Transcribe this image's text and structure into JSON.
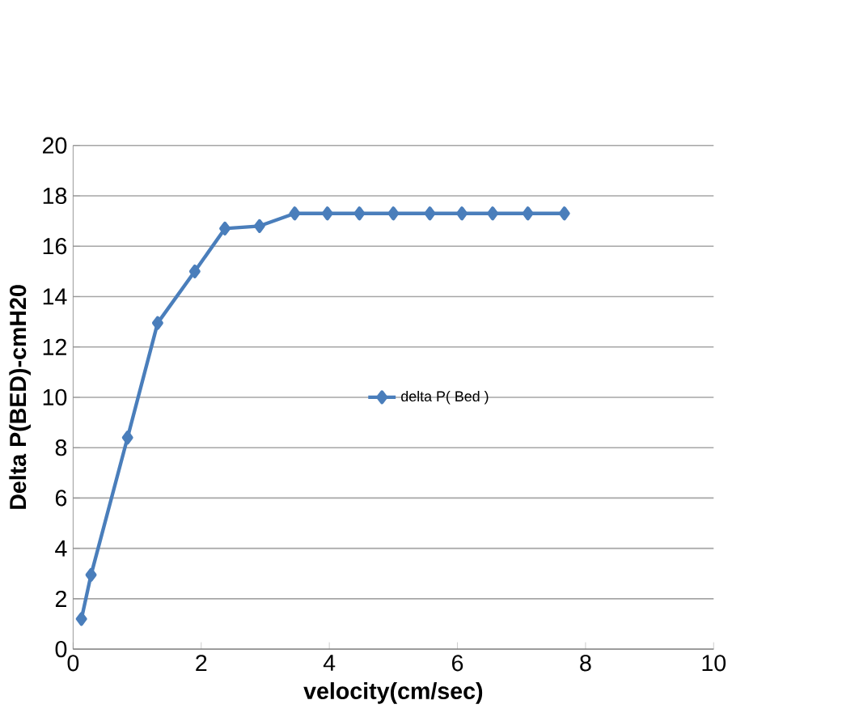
{
  "chart_data": {
    "type": "line",
    "xlabel": "velocity(cm/sec)",
    "ylabel": "Delta P(BED)-cmH20",
    "x": [
      0.13,
      0.28,
      0.85,
      1.32,
      1.9,
      2.37,
      2.91,
      3.46,
      3.97,
      4.47,
      5.0,
      5.57,
      6.07,
      6.55,
      7.1,
      7.67
    ],
    "series": [
      {
        "name": "delta P( Bed )",
        "color": "#4a7ebb",
        "values": [
          1.2,
          2.95,
          8.4,
          12.95,
          15.0,
          16.7,
          16.8,
          17.3,
          17.3,
          17.3,
          17.3,
          17.3,
          17.3,
          17.3,
          17.3,
          17.3
        ]
      }
    ],
    "xlim": [
      0,
      10
    ],
    "ylim": [
      0,
      20
    ],
    "xticks": [
      0,
      2,
      4,
      6,
      8,
      10
    ],
    "yticks": [
      0,
      2,
      4,
      6,
      8,
      10,
      12,
      14,
      16,
      18,
      20
    ],
    "grid": "y",
    "legend": "right",
    "marker": "diamond",
    "line_style": "solid"
  }
}
